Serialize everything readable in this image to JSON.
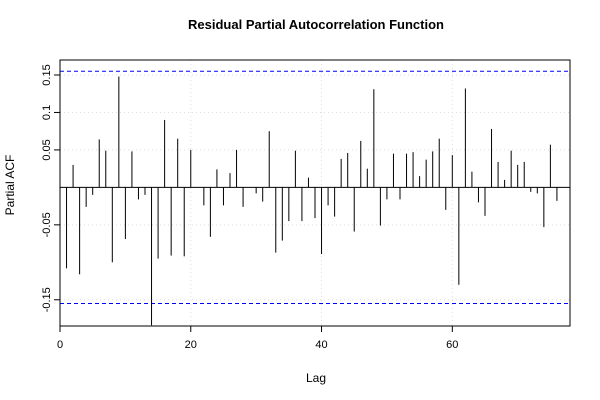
{
  "chart_data": {
    "type": "bar",
    "title": "Residual Partial Autocorrelation Function",
    "xlabel": "Lag",
    "ylabel": "Partial ACF",
    "xlim": [
      0,
      78
    ],
    "ylim": [
      -0.185,
      0.17
    ],
    "x_ticks": [
      0,
      20,
      40,
      60
    ],
    "y_ticks": [
      -0.15,
      -0.05,
      0.05,
      0.1,
      0.15
    ],
    "confidence_bound": 0.155,
    "grid": true,
    "colors": {
      "bars": "#000000",
      "bound": "#0000ff",
      "grid": "#dddddd",
      "zero_line": "#000000"
    },
    "lags": [
      1,
      2,
      3,
      4,
      5,
      6,
      7,
      8,
      9,
      10,
      11,
      12,
      13,
      14,
      15,
      16,
      17,
      18,
      19,
      20,
      21,
      22,
      23,
      24,
      25,
      26,
      27,
      28,
      29,
      30,
      31,
      32,
      33,
      34,
      35,
      36,
      37,
      38,
      39,
      40,
      41,
      42,
      43,
      44,
      45,
      46,
      47,
      48,
      49,
      50,
      51,
      52,
      53,
      54,
      55,
      56,
      57,
      58,
      59,
      60,
      61,
      62,
      63,
      64,
      65,
      66,
      67,
      68,
      69,
      70,
      71,
      72,
      73,
      74,
      75,
      76
    ],
    "values": [
      -0.108,
      0.03,
      -0.116,
      -0.026,
      -0.01,
      0.064,
      0.049,
      -0.1,
      0.148,
      -0.069,
      0.048,
      -0.016,
      -0.01,
      -0.184,
      -0.095,
      0.09,
      -0.091,
      0.065,
      -0.092,
      0.05,
      0.0,
      -0.024,
      -0.066,
      0.024,
      -0.024,
      0.019,
      0.05,
      -0.026,
      0.0,
      -0.008,
      -0.019,
      0.075,
      -0.087,
      -0.071,
      -0.045,
      0.049,
      -0.045,
      0.013,
      -0.041,
      -0.089,
      -0.024,
      -0.039,
      0.038,
      0.046,
      -0.059,
      0.062,
      0.025,
      0.131,
      -0.051,
      -0.016,
      0.045,
      -0.016,
      0.045,
      0.047,
      0.015,
      0.037,
      0.048,
      0.065,
      -0.03,
      0.043,
      -0.13,
      0.132,
      0.021,
      -0.02,
      -0.038,
      0.078,
      0.034,
      0.01,
      0.049,
      0.03,
      0.034,
      -0.006,
      -0.008,
      -0.053,
      0.057,
      -0.018
    ]
  }
}
